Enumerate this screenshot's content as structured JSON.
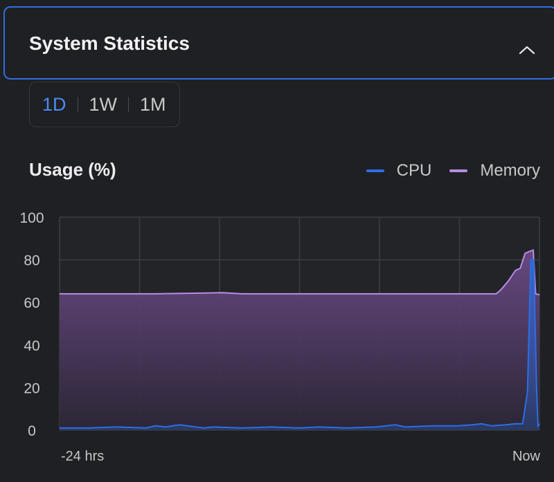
{
  "header": {
    "title": "System Statistics"
  },
  "range_selector": {
    "options": [
      "1D",
      "1W",
      "1M"
    ],
    "selected": "1D"
  },
  "colors": {
    "accent": "#2f6fe0",
    "active_tab": "#4c8cf5",
    "cpu": "#2a6fe6",
    "memory": "#b98de6"
  },
  "chart_data": {
    "type": "area",
    "title": "Usage (%)",
    "xlabel": "",
    "ylabel": "",
    "ylim": [
      0,
      100
    ],
    "yticks": [
      0,
      20,
      40,
      60,
      80,
      100
    ],
    "x_tick_labels": [
      "-24 hrs",
      "Now"
    ],
    "grid": true,
    "legend_position": "top-right",
    "series": [
      {
        "name": "CPU",
        "points": [
          [
            0,
            1
          ],
          [
            6,
            1
          ],
          [
            12,
            1.5
          ],
          [
            18,
            1
          ],
          [
            20,
            2
          ],
          [
            22,
            1.5
          ],
          [
            25,
            2.5
          ],
          [
            30,
            1
          ],
          [
            32,
            1.5
          ],
          [
            38,
            1
          ],
          [
            44,
            1.5
          ],
          [
            50,
            1
          ],
          [
            54,
            1.5
          ],
          [
            60,
            1
          ],
          [
            66,
            1.5
          ],
          [
            70,
            2.5
          ],
          [
            72,
            1.5
          ],
          [
            78,
            2
          ],
          [
            83,
            2
          ],
          [
            86,
            2.5
          ],
          [
            88,
            3
          ],
          [
            90,
            2
          ],
          [
            93,
            2.5
          ],
          [
            95,
            3
          ],
          [
            96.5,
            3
          ],
          [
            97.5,
            18
          ],
          [
            98.2,
            80
          ],
          [
            98.8,
            80
          ],
          [
            99.4,
            20
          ],
          [
            99.7,
            2
          ],
          [
            100,
            3
          ]
        ]
      },
      {
        "name": "Memory",
        "points": [
          [
            0,
            64
          ],
          [
            20,
            64
          ],
          [
            28,
            64.3
          ],
          [
            34,
            64.5
          ],
          [
            38,
            64
          ],
          [
            60,
            64
          ],
          [
            70,
            64
          ],
          [
            80,
            64
          ],
          [
            88,
            64
          ],
          [
            91,
            64
          ],
          [
            92,
            66
          ],
          [
            93.5,
            70
          ],
          [
            95,
            75
          ],
          [
            96,
            76
          ],
          [
            97,
            83
          ],
          [
            98,
            84
          ],
          [
            98.7,
            84.5
          ],
          [
            99.2,
            64
          ],
          [
            100,
            63.5
          ]
        ]
      }
    ]
  }
}
